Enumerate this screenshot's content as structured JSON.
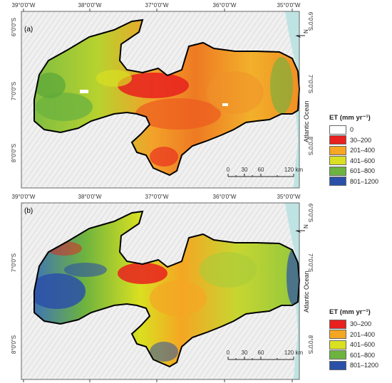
{
  "colors": {
    "ocean": "#bfe3e3",
    "basemap": "#eeeeee",
    "boundary": "#000000"
  },
  "axes": {
    "lon_labels": [
      "39°0'0\"W",
      "38°0'0\"W",
      "37°0'0\"W",
      "36°0'0\"W",
      "35°0'0\"W"
    ],
    "lat_labels": [
      "6°0'0\"S",
      "7°0'0\"S",
      "8°0'0\"S"
    ]
  },
  "ocean_label": "Atlantic Ocean",
  "north_symbol": "N",
  "scalebar": {
    "ticks": [
      "0",
      "30",
      "60",
      "120 km"
    ]
  },
  "panels": [
    {
      "id": "(a)",
      "legend_title": "ET (mm yr⁻¹)",
      "legend": [
        {
          "label": "0",
          "color": "#ffffff"
        },
        {
          "label": "30–200",
          "color": "#e8201e"
        },
        {
          "label": "201–400",
          "color": "#f5a623"
        },
        {
          "label": "401–600",
          "color": "#d9e021"
        },
        {
          "label": "601–800",
          "color": "#6db33f"
        },
        {
          "label": "801–1200",
          "color": "#2b50a8"
        }
      ]
    },
    {
      "id": "(b)",
      "legend_title": "ET (mm yr⁻¹)",
      "legend": [
        {
          "label": "30–200",
          "color": "#e8201e"
        },
        {
          "label": "201–400",
          "color": "#f5a623"
        },
        {
          "label": "401–600",
          "color": "#d9e021"
        },
        {
          "label": "601–800",
          "color": "#6db33f"
        },
        {
          "label": "801–1200",
          "color": "#2b50a8"
        }
      ]
    }
  ]
}
